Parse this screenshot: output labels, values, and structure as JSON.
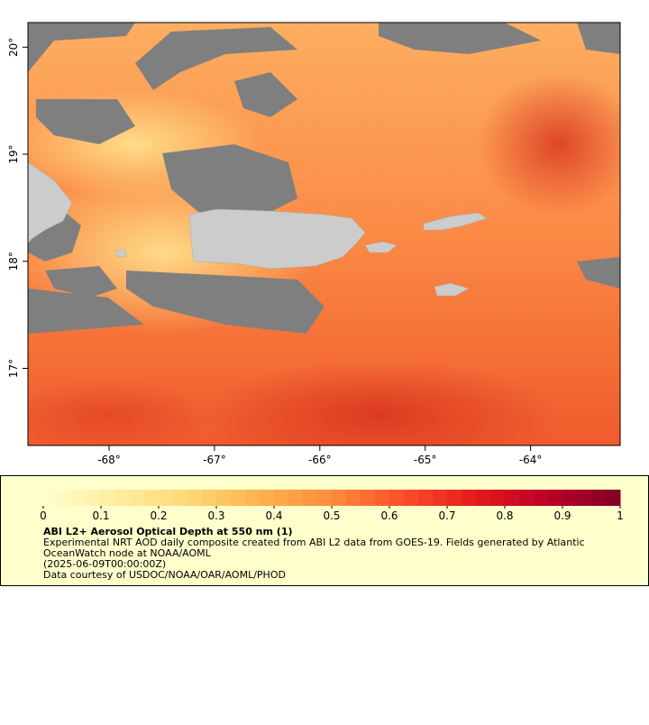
{
  "map": {
    "xlim": [
      -68.77,
      -63.15
    ],
    "ylim": [
      16.28,
      20.23
    ],
    "lon_ticks": [
      {
        "value": -68,
        "label": "-68°"
      },
      {
        "value": -67,
        "label": "-67°"
      },
      {
        "value": -66,
        "label": "-66°"
      },
      {
        "value": -65,
        "label": "-65°"
      },
      {
        "value": -64,
        "label": "-64°"
      }
    ],
    "lat_ticks": [
      {
        "value": 20,
        "label": "20°"
      },
      {
        "value": 19,
        "label": "19°"
      },
      {
        "value": 18,
        "label": "18°"
      },
      {
        "value": 17,
        "label": "17°"
      }
    ]
  },
  "legend": {
    "title": "ABI L2+ Aerosol Optical Depth at 550 nm (1)",
    "lines": [
      "Experimental NRT AOD daily composite created from ABI L2 data from GOES-19. Fields generated by Atlantic",
      "OceanWatch node at NOAA/AOML",
      "(2025-06-09T00:00:00Z)",
      "Data courtesy of USDOC/NOAA/OAR/AOML/PHOD"
    ],
    "ticks": [
      0,
      0.1,
      0.2,
      0.3,
      0.4,
      0.5,
      0.6,
      0.7,
      0.8,
      0.9,
      1
    ],
    "colors": [
      "#ffffcc",
      "#ffeda0",
      "#fed976",
      "#feb24c",
      "#fd8d3c",
      "#fc4e2a",
      "#e31a1c",
      "#bd0026",
      "#800026"
    ]
  }
}
